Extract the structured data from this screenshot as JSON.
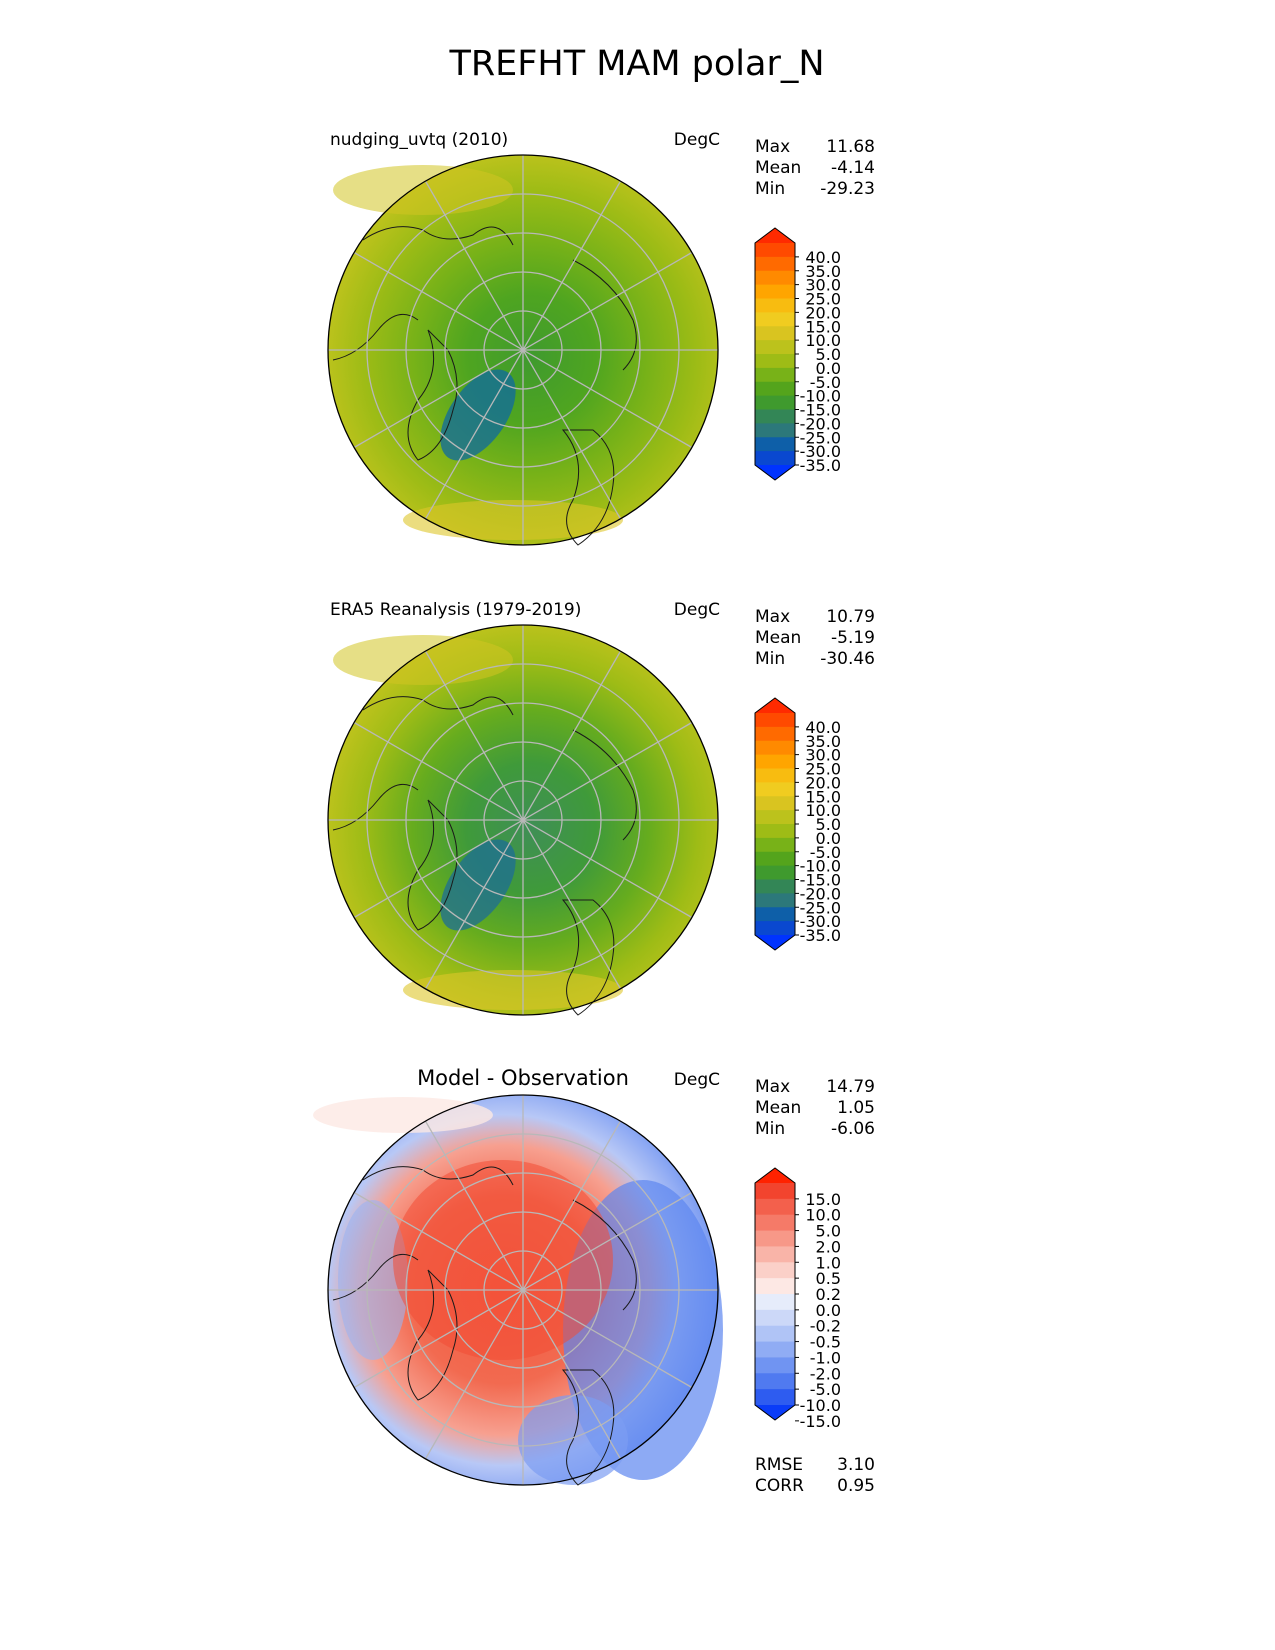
{
  "title": "TREFHT MAM polar_N",
  "chart_data": [
    {
      "type": "polar_contour_map",
      "title": "nudging_uvtq (2010)",
      "units": "DegC",
      "stats": [
        {
          "label": "Max",
          "value": "11.68"
        },
        {
          "label": "Mean",
          "value": "-4.14"
        },
        {
          "label": "Min",
          "value": "-29.23"
        }
      ],
      "colorbar": {
        "ticks": [
          "40.0",
          "35.0",
          "30.0",
          "25.0",
          "20.0",
          "15.0",
          "10.0",
          "5.0",
          "0.0",
          "-5.0",
          "-10.0",
          "-15.0",
          "-20.0",
          "-25.0",
          "-30.0",
          "-35.0"
        ],
        "colors": [
          "#ff2a00",
          "#ff4a00",
          "#ff6a00",
          "#ff8a00",
          "#ffa500",
          "#f8bc10",
          "#f0cc20",
          "#d9c420",
          "#bcc21c",
          "#9ebc16",
          "#78b218",
          "#54a41c",
          "#3f9a2e",
          "#338656",
          "#2c787a",
          "#0e5fa8",
          "#0a48d0",
          "#0033ff"
        ]
      },
      "extra_stats": []
    },
    {
      "type": "polar_contour_map",
      "title": "ERA5 Reanalysis (1979-2019)",
      "units": "DegC",
      "stats": [
        {
          "label": "Max",
          "value": "10.79"
        },
        {
          "label": "Mean",
          "value": "-5.19"
        },
        {
          "label": "Min",
          "value": "-30.46"
        }
      ],
      "colorbar": {
        "ticks": [
          "40.0",
          "35.0",
          "30.0",
          "25.0",
          "20.0",
          "15.0",
          "10.0",
          "5.0",
          "0.0",
          "-5.0",
          "-10.0",
          "-15.0",
          "-20.0",
          "-25.0",
          "-30.0",
          "-35.0"
        ],
        "colors": [
          "#ff2a00",
          "#ff4a00",
          "#ff6a00",
          "#ff8a00",
          "#ffa500",
          "#f8bc10",
          "#f0cc20",
          "#d9c420",
          "#bcc21c",
          "#9ebc16",
          "#78b218",
          "#54a41c",
          "#3f9a2e",
          "#338656",
          "#2c787a",
          "#0e5fa8",
          "#0a48d0",
          "#0033ff"
        ]
      },
      "extra_stats": []
    },
    {
      "type": "polar_contour_map",
      "title": "Model - Observation",
      "units": "DegC",
      "stats": [
        {
          "label": "Max",
          "value": "14.79"
        },
        {
          "label": "Mean",
          "value": "1.05"
        },
        {
          "label": "Min",
          "value": "-6.06"
        }
      ],
      "colorbar": {
        "ticks": [
          "15.0",
          "10.0",
          "5.0",
          "2.0",
          "1.0",
          "0.5",
          "0.2",
          "0.0",
          "-0.2",
          "-0.5",
          "-1.0",
          "-2.0",
          "-5.0",
          "-10.0",
          "-15.0"
        ],
        "colors": [
          "#ff2200",
          "#f2442e",
          "#f3604c",
          "#f57a68",
          "#f79888",
          "#f9b4a8",
          "#fbd0c8",
          "#fde8e4",
          "#e6ecfb",
          "#ccd8f8",
          "#b0c4f6",
          "#90acf4",
          "#7094f2",
          "#507af0",
          "#2e5cf0",
          "#0a3cf8"
        ]
      },
      "extra_stats": [
        {
          "label": "RMSE",
          "value": "3.10"
        },
        {
          "label": "CORR",
          "value": "0.95"
        }
      ]
    }
  ]
}
